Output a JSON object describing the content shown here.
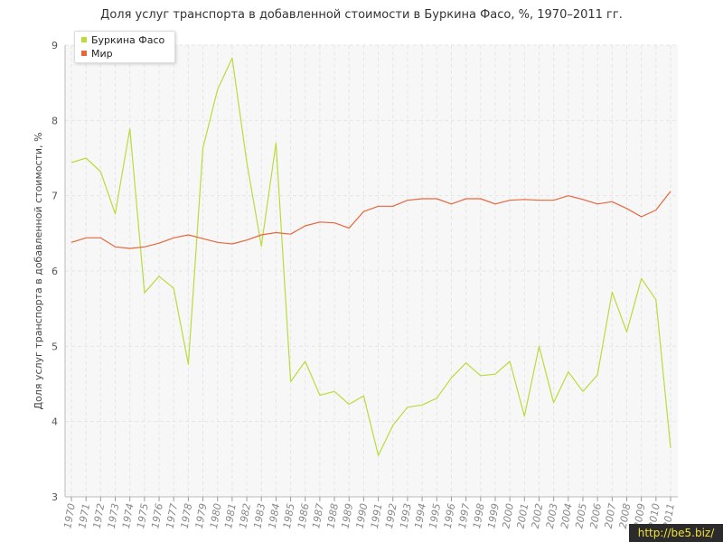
{
  "watermark": "http://be5.biz/",
  "chart_data": {
    "type": "line",
    "title": "Доля услуг транспорта в добавленной стоимости в Буркина Фасо, %, 1970–2011 гг.",
    "ylabel": "Доля услуг транспорта в добавленной стоимости, %",
    "xlabel": "",
    "ylim": [
      3,
      9
    ],
    "yticks": [
      "3",
      "4",
      "5",
      "6",
      "7",
      "8",
      "9"
    ],
    "legend_position": "top-left",
    "grid": true,
    "x": [
      "1970",
      "1971",
      "1972",
      "1973",
      "1974",
      "1975",
      "1976",
      "1977",
      "1978",
      "1979",
      "1980",
      "1981",
      "1982",
      "1983",
      "1984",
      "1985",
      "1986",
      "1987",
      "1988",
      "1989",
      "1990",
      "1991",
      "1992",
      "1993",
      "1994",
      "1995",
      "1996",
      "1997",
      "1998",
      "1999",
      "2000",
      "2001",
      "2002",
      "2003",
      "2004",
      "2005",
      "2006",
      "2007",
      "2008",
      "2009",
      "2010",
      "2011"
    ],
    "series": [
      {
        "name": "Буркина Фасо",
        "color": "#b9dc3a",
        "values": [
          7.44,
          7.5,
          7.32,
          6.76,
          7.89,
          5.71,
          5.93,
          5.77,
          4.76,
          7.63,
          8.41,
          8.83,
          7.45,
          6.33,
          7.7,
          4.53,
          4.8,
          4.35,
          4.4,
          4.23,
          4.34,
          3.55,
          3.95,
          4.19,
          4.22,
          4.31,
          4.58,
          4.78,
          4.61,
          4.63,
          4.8,
          4.07,
          5.0,
          4.25,
          4.66,
          4.4,
          4.62,
          5.72,
          5.19,
          5.9,
          5.62,
          3.65
        ]
      },
      {
        "name": "Мир",
        "color": "#e8663c",
        "values": [
          6.38,
          6.44,
          6.44,
          6.32,
          6.3,
          6.32,
          6.37,
          6.44,
          6.48,
          6.43,
          6.38,
          6.36,
          6.41,
          6.48,
          6.51,
          6.49,
          6.6,
          6.65,
          6.64,
          6.57,
          6.79,
          6.86,
          6.86,
          6.94,
          6.96,
          6.96,
          6.89,
          6.96,
          6.96,
          6.89,
          6.94,
          6.95,
          6.94,
          6.94,
          7.0,
          6.95,
          6.89,
          6.92,
          6.83,
          6.72,
          6.81,
          7.06
        ]
      }
    ]
  }
}
